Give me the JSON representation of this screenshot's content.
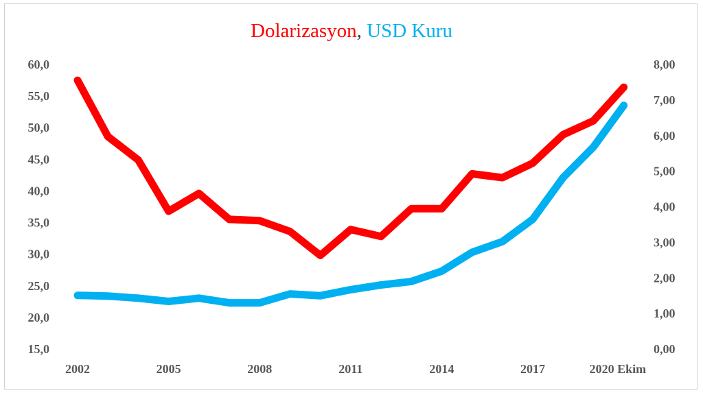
{
  "title": {
    "part1": "Dolarizasyon",
    "separator": ",",
    "part2": "USD Kuru"
  },
  "chart_data": {
    "type": "line",
    "x": [
      2002,
      2003,
      2004,
      2005,
      2006,
      2007,
      2008,
      2009,
      2010,
      2011,
      2012,
      2013,
      2014,
      2015,
      2016,
      2017,
      2018,
      2019,
      2020
    ],
    "x_tick_labels": [
      "2002",
      "2005",
      "2008",
      "2011",
      "2014",
      "2017",
      "2020 Ekim"
    ],
    "x_tick_values": [
      2002,
      2005,
      2008,
      2011,
      2014,
      2017,
      2020
    ],
    "left_axis": {
      "ylim": [
        15,
        60
      ],
      "tick_labels": [
        "15,0",
        "20,0",
        "25,0",
        "30,0",
        "35,0",
        "40,0",
        "45,0",
        "50,0",
        "55,0",
        "60,0"
      ]
    },
    "right_axis": {
      "ylim": [
        0,
        8
      ],
      "tick_labels": [
        "0,00",
        "1,00",
        "2,00",
        "3,00",
        "4,00",
        "5,00",
        "6,00",
        "7,00",
        "8,00"
      ]
    },
    "series": [
      {
        "name": "Dolarizasyon",
        "axis": "left",
        "color": "#ff0000",
        "values": [
          57.5,
          48.6,
          44.9,
          36.8,
          39.6,
          35.5,
          35.3,
          33.6,
          29.8,
          33.9,
          32.8,
          37.2,
          37.2,
          42.7,
          42.1,
          44.4,
          48.9,
          51.1,
          56.4
        ]
      },
      {
        "name": "USD Kuru",
        "axis": "right",
        "color": "#00b0f0",
        "values": [
          1.51,
          1.49,
          1.43,
          1.34,
          1.43,
          1.3,
          1.3,
          1.55,
          1.5,
          1.67,
          1.8,
          1.9,
          2.19,
          2.72,
          3.02,
          3.65,
          4.82,
          5.68,
          6.85
        ]
      }
    ],
    "grid": false,
    "legend": "none"
  }
}
